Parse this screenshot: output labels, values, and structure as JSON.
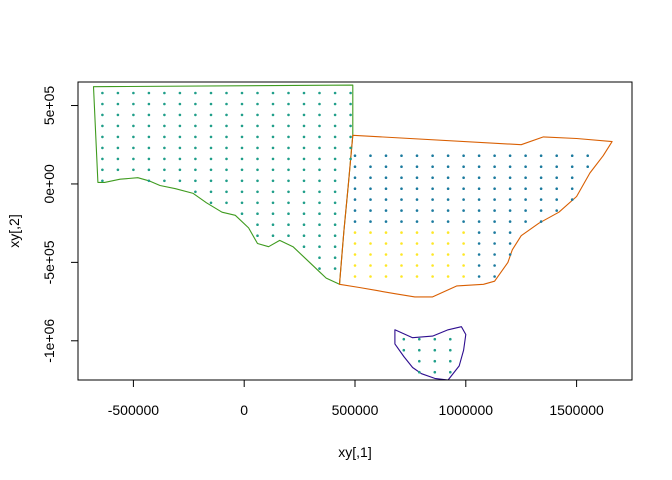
{
  "chart_data": {
    "type": "scatter",
    "xlabel": "xy[,1]",
    "ylabel": "xy[,2]",
    "xlim": [
      -750000,
      1750000
    ],
    "ylim": [
      -1250000,
      650000
    ],
    "grid": false,
    "legend": "none",
    "x_ticks": [
      {
        "value": -500000,
        "label": "-500000"
      },
      {
        "value": 0,
        "label": "0"
      },
      {
        "value": 500000,
        "label": "500000"
      },
      {
        "value": 1000000,
        "label": "1000000"
      },
      {
        "value": 1500000,
        "label": "1500000"
      }
    ],
    "y_ticks": [
      {
        "value": 500000,
        "label": "5e+05"
      },
      {
        "value": 0,
        "label": "0e+00"
      },
      {
        "value": -500000,
        "label": "-5e+05"
      },
      {
        "value": -1000000,
        "label": "-1e+06"
      }
    ],
    "colors": {
      "south_australia": "#3f9b1f",
      "victoria": "#d95f02",
      "tasmania": "#2e0e8f",
      "points_teal": "#1f9e89",
      "points_blue": "#1b7a9e",
      "points_yellow": "#fde725"
    },
    "regions": [
      {
        "id": "south-australia",
        "color": "#3f9b1f",
        "outline": [
          [
            -680000,
            620000
          ],
          [
            490000,
            630000
          ],
          [
            490000,
            310000
          ],
          [
            470000,
            0
          ],
          [
            450000,
            -300000
          ],
          [
            430000,
            -640000
          ],
          [
            370000,
            -600000
          ],
          [
            340000,
            -560000
          ],
          [
            280000,
            -480000
          ],
          [
            220000,
            -400000
          ],
          [
            160000,
            -360000
          ],
          [
            110000,
            -400000
          ],
          [
            60000,
            -380000
          ],
          [
            20000,
            -280000
          ],
          [
            -40000,
            -200000
          ],
          [
            -100000,
            -180000
          ],
          [
            -170000,
            -120000
          ],
          [
            -230000,
            -60000
          ],
          [
            -310000,
            -30000
          ],
          [
            -380000,
            -10000
          ],
          [
            -430000,
            20000
          ],
          [
            -480000,
            40000
          ],
          [
            -560000,
            30000
          ],
          [
            -630000,
            10000
          ],
          [
            -660000,
            10000
          ],
          [
            -680000,
            620000
          ]
        ],
        "points": {
          "color": "#1f9e89",
          "x_range": [
            -640000,
            480000
          ],
          "y_range": [
            -540000,
            600000
          ],
          "spacing": 70000
        }
      },
      {
        "id": "victoria",
        "color": "#d95f02",
        "outline": [
          [
            490000,
            310000
          ],
          [
            1250000,
            250000
          ],
          [
            1350000,
            300000
          ],
          [
            1500000,
            290000
          ],
          [
            1660000,
            270000
          ],
          [
            1620000,
            180000
          ],
          [
            1560000,
            70000
          ],
          [
            1500000,
            -80000
          ],
          [
            1420000,
            -180000
          ],
          [
            1330000,
            -250000
          ],
          [
            1250000,
            -330000
          ],
          [
            1210000,
            -420000
          ],
          [
            1190000,
            -500000
          ],
          [
            1130000,
            -620000
          ],
          [
            1080000,
            -640000
          ],
          [
            960000,
            -650000
          ],
          [
            850000,
            -720000
          ],
          [
            770000,
            -720000
          ],
          [
            680000,
            -700000
          ],
          [
            600000,
            -680000
          ],
          [
            520000,
            -660000
          ],
          [
            430000,
            -640000
          ],
          [
            450000,
            -300000
          ],
          [
            470000,
            0
          ],
          [
            490000,
            310000
          ]
        ],
        "points": {
          "color": "#1b7a9e",
          "x_range": [
            500000,
            1640000
          ],
          "y_range": [
            -590000,
            200000
          ],
          "spacing": 70000,
          "south_west_color": "#fde725"
        }
      },
      {
        "id": "tasmania",
        "color": "#2e0e8f",
        "outline": [
          [
            680000,
            -930000
          ],
          [
            760000,
            -980000
          ],
          [
            850000,
            -970000
          ],
          [
            920000,
            -930000
          ],
          [
            980000,
            -910000
          ],
          [
            1000000,
            -960000
          ],
          [
            990000,
            -1060000
          ],
          [
            970000,
            -1160000
          ],
          [
            920000,
            -1250000
          ],
          [
            860000,
            -1240000
          ],
          [
            800000,
            -1210000
          ],
          [
            760000,
            -1170000
          ],
          [
            720000,
            -1100000
          ],
          [
            680000,
            -1020000
          ],
          [
            680000,
            -930000
          ]
        ],
        "points": {
          "color": "#1f9e89",
          "x_range": [
            720000,
            960000
          ],
          "y_range": [
            -1200000,
            -960000
          ],
          "spacing": 70000
        }
      }
    ]
  }
}
